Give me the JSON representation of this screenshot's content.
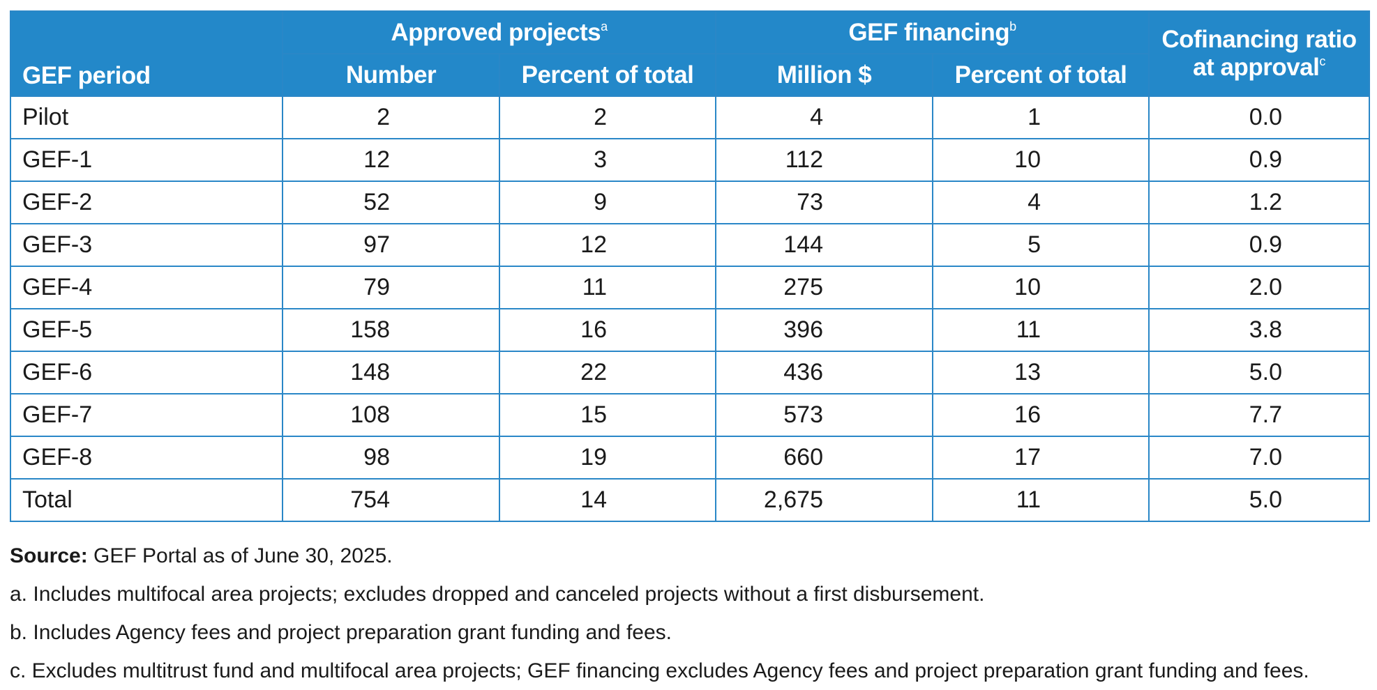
{
  "table": {
    "header": {
      "period": "GEF period",
      "approved_group": "Approved projects",
      "approved_marker": "a",
      "financing_group": "GEF financing",
      "financing_marker": "b",
      "ratio_line1": "Cofinancing ratio",
      "ratio_line2": "at approval",
      "ratio_marker": "c",
      "number": "Number",
      "percent_total_1": "Percent of total",
      "million": "Million $",
      "percent_total_2": "Percent of total"
    },
    "rows": [
      {
        "period": "Pilot",
        "number": "2",
        "pct_projects": "2",
        "million": "4",
        "pct_financing": "1",
        "ratio": "0.0"
      },
      {
        "period": "GEF-1",
        "number": "12",
        "pct_projects": "3",
        "million": "112",
        "pct_financing": "10",
        "ratio": "0.9"
      },
      {
        "period": "GEF-2",
        "number": "52",
        "pct_projects": "9",
        "million": "73",
        "pct_financing": "4",
        "ratio": "1.2"
      },
      {
        "period": "GEF-3",
        "number": "97",
        "pct_projects": "12",
        "million": "144",
        "pct_financing": "5",
        "ratio": "0.9"
      },
      {
        "period": "GEF-4",
        "number": "79",
        "pct_projects": "11",
        "million": "275",
        "pct_financing": "10",
        "ratio": "2.0"
      },
      {
        "period": "GEF-5",
        "number": "158",
        "pct_projects": "16",
        "million": "396",
        "pct_financing": "11",
        "ratio": "3.8"
      },
      {
        "period": "GEF-6",
        "number": "148",
        "pct_projects": "22",
        "million": "436",
        "pct_financing": "13",
        "ratio": "5.0"
      },
      {
        "period": "GEF-7",
        "number": "108",
        "pct_projects": "15",
        "million": "573",
        "pct_financing": "16",
        "ratio": "7.7"
      },
      {
        "period": "GEF-8",
        "number": "98",
        "pct_projects": "19",
        "million": "660",
        "pct_financing": "17",
        "ratio": "7.0"
      },
      {
        "period": "Total",
        "number": "754",
        "pct_projects": "14",
        "million": "2,675",
        "pct_financing": "11",
        "ratio": "5.0"
      }
    ]
  },
  "notes": {
    "source_label": "Source:",
    "source_text": " GEF Portal as of June 30, 2025.",
    "note_a": "a. Includes multifocal area projects; excludes dropped and canceled projects without a first disbursement.",
    "note_b": "b. Includes Agency fees and project preparation grant funding and fees.",
    "note_c": "c. Excludes multitrust fund and multifocal area projects; GEF financing excludes Agency fees and project preparation grant funding and fees."
  },
  "colors": {
    "header_bg": "#2388c9",
    "border": "#2a87c7",
    "header_text": "#ffffff",
    "body_text": "#1a1a1a"
  }
}
